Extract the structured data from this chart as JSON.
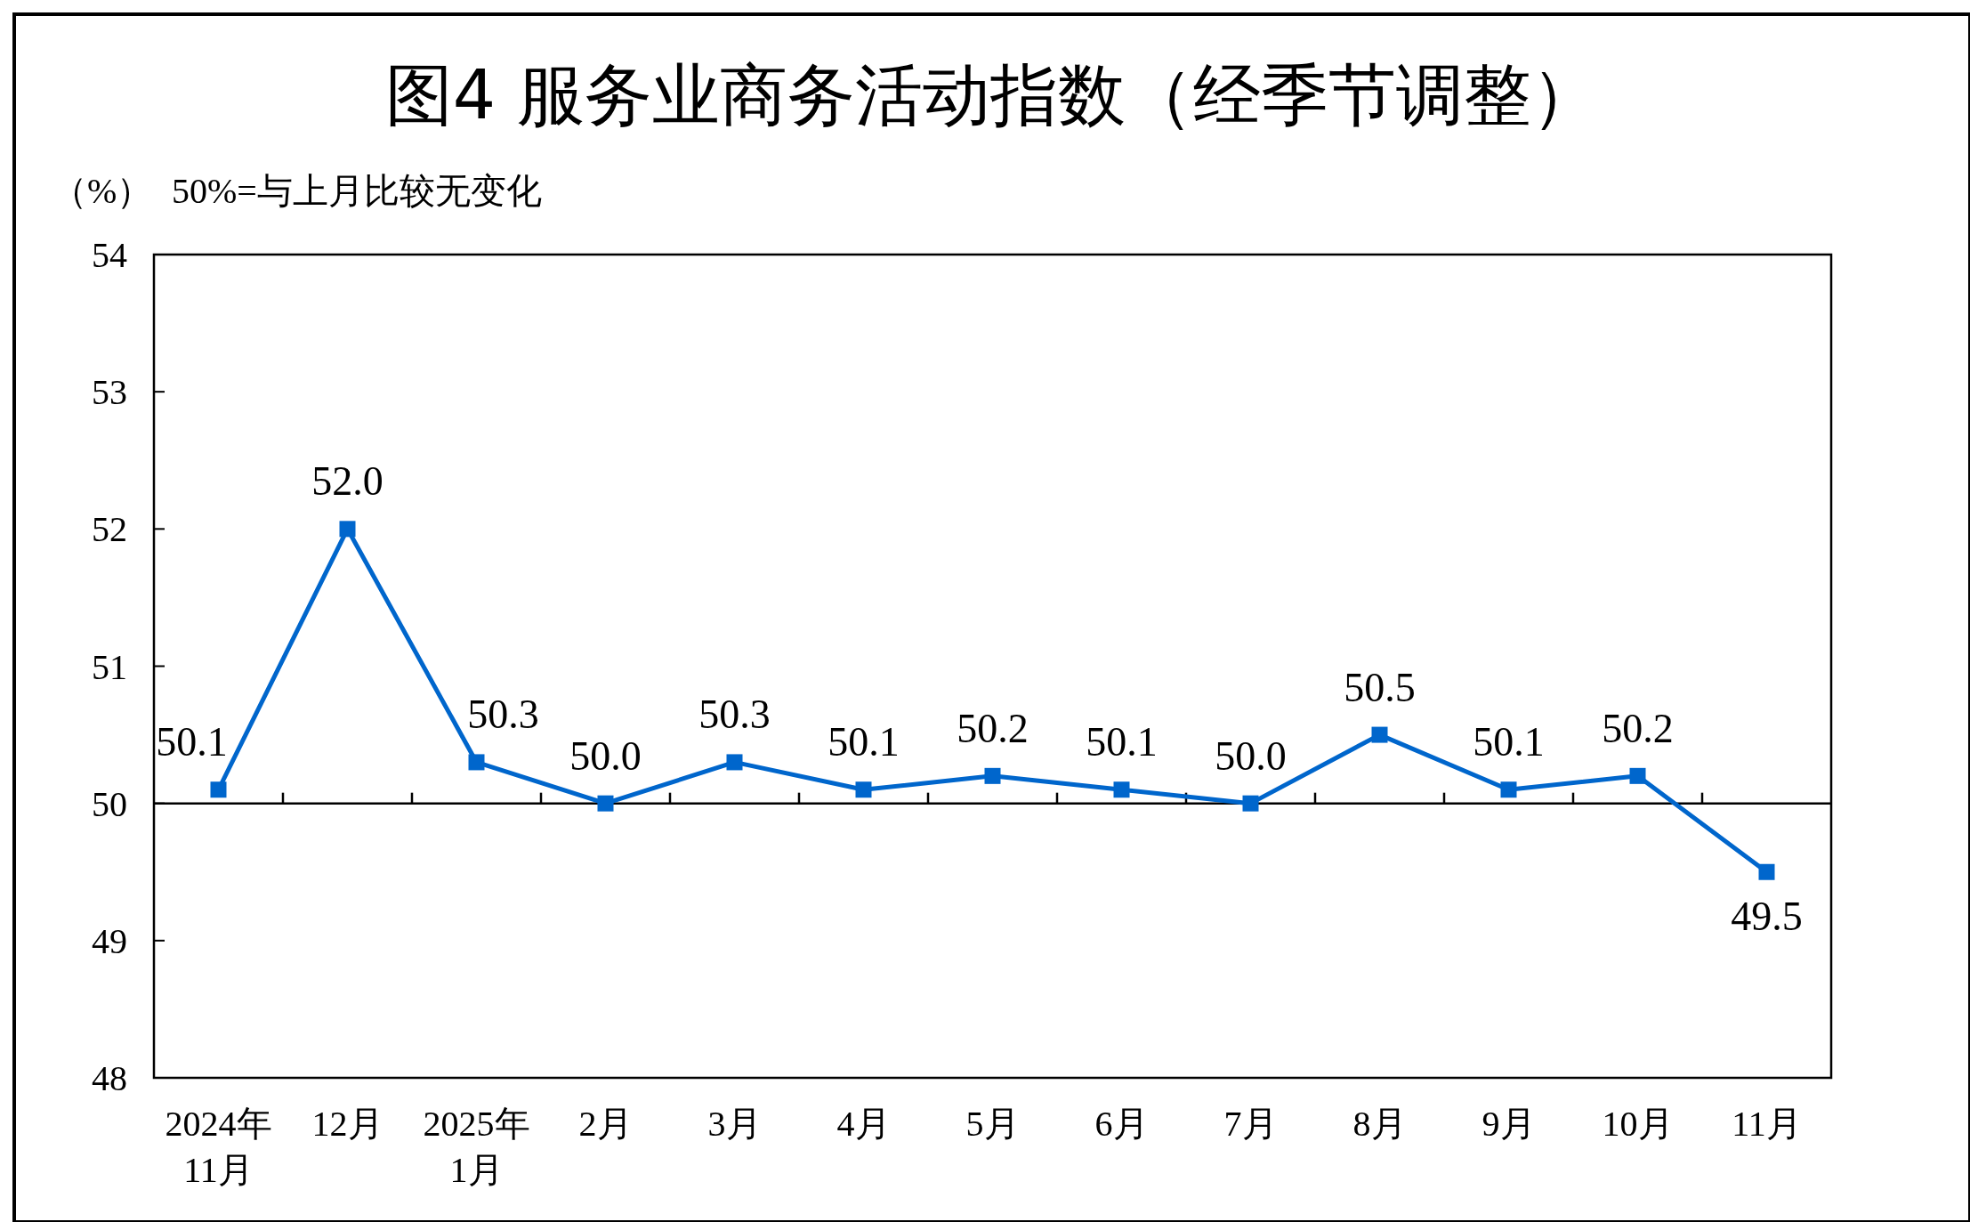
{
  "chart_data": {
    "type": "line",
    "title": "图4  服务业商务活动指数（经季节调整）",
    "ylabel": "（%）",
    "annotations": [
      "50%=与上月比较无变化"
    ],
    "categories": [
      "2024年\n11月",
      "12月",
      "2025年\n1月",
      "2月",
      "3月",
      "4月",
      "5月",
      "6月",
      "7月",
      "8月",
      "9月",
      "10月",
      "11月"
    ],
    "series": [
      {
        "color": "#0066cc",
        "values": [
          50.1,
          52.0,
          50.3,
          50.0,
          50.3,
          50.1,
          50.2,
          50.1,
          50.0,
          50.5,
          50.1,
          50.2,
          49.5
        ],
        "value_labels": [
          "50.1",
          "52.0",
          "50.3",
          "50.0",
          "50.3",
          "50.1",
          "50.2",
          "50.1",
          "50.0",
          "50.5",
          "50.1",
          "50.2",
          "49.5"
        ]
      }
    ],
    "ylim": [
      48,
      54
    ],
    "yticks": [
      48,
      49,
      50,
      51,
      52,
      53,
      54
    ],
    "ref_lines": [
      {
        "axis": "y",
        "value": 50,
        "color": "#000000"
      }
    ],
    "marker": "square",
    "line_style": "solid"
  }
}
